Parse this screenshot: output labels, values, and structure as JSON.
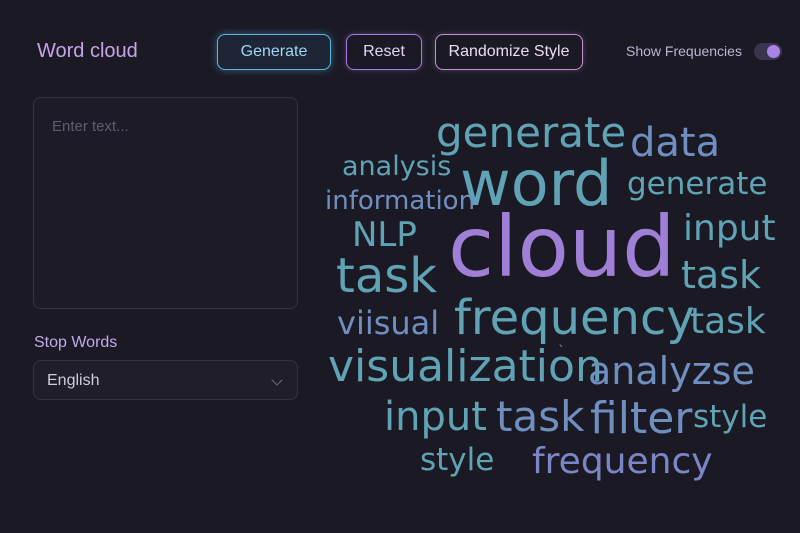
{
  "header": {
    "title": "Word cloud",
    "generate_label": "Generate",
    "reset_label": "Reset",
    "randomize_label": "Randomize Style",
    "show_frequencies_label": "Show Frequencies",
    "show_frequencies_on": true
  },
  "input": {
    "placeholder": "Enter text...",
    "value": ""
  },
  "stop_words": {
    "label": "Stop Words",
    "selected": "English"
  },
  "colors": {
    "accent_purple": "#a984e6",
    "accent_blue": "#5cb6e6",
    "word_teal": "#5fa3b5",
    "word_blue": "#6f8fc0",
    "word_purple": "#a07fd6"
  },
  "cloud": {
    "words": [
      {
        "text": "generate",
        "color": "#5fa3b5"
      },
      {
        "text": "data",
        "color": "#6f8fc0"
      },
      {
        "text": "analysis",
        "color": "#5fa3b5"
      },
      {
        "text": "word",
        "color": "#5fa3b5"
      },
      {
        "text": "generate",
        "color": "#5fa3b5"
      },
      {
        "text": "information",
        "color": "#6f8fc0"
      },
      {
        "text": "NLP",
        "color": "#5fa3b5"
      },
      {
        "text": "cloud",
        "color": "#a07fd6"
      },
      {
        "text": "input",
        "color": "#5fa3b5"
      },
      {
        "text": "task",
        "color": "#5fa3b5"
      },
      {
        "text": "task",
        "color": "#5fa3b5"
      },
      {
        "text": "viisual",
        "color": "#6f8fc0"
      },
      {
        "text": "frequency",
        "color": "#5fa3b5"
      },
      {
        "text": "task",
        "color": "#5fa3b5"
      },
      {
        "text": "visualization",
        "color": "#5fa3b5"
      },
      {
        "text": "analyzse",
        "color": "#6f8fc0"
      },
      {
        "text": "input",
        "color": "#5fa3b5"
      },
      {
        "text": "task",
        "color": "#6f8fc0"
      },
      {
        "text": "filter",
        "color": "#6f8fc0"
      },
      {
        "text": "style",
        "color": "#5fa3b5"
      },
      {
        "text": "style",
        "color": "#5fa3b5"
      },
      {
        "text": "frequency",
        "color": "#7b86c8"
      }
    ]
  }
}
